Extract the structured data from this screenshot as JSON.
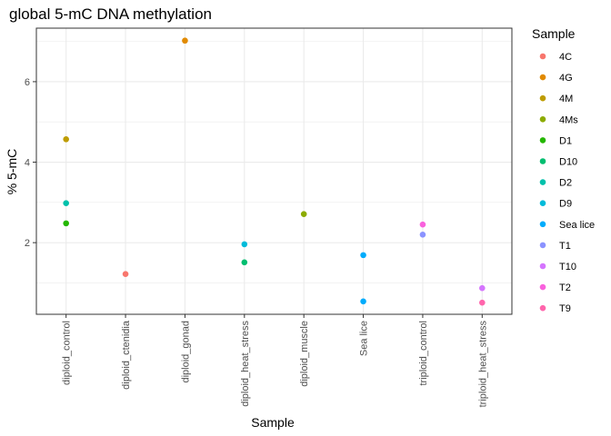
{
  "chart_data": {
    "type": "scatter",
    "title": "global 5-mC DNA methylation",
    "xlabel": "Sample",
    "ylabel": "% 5-mC",
    "categories": [
      "diploid_control",
      "diploid_ctenidia",
      "diploid_gonad",
      "diploid_heat_stress",
      "diploid_muscle",
      "Sea lice",
      "triploid_control",
      "triploid_heat_stress"
    ],
    "ylim": [
      0.22,
      7.33
    ],
    "yticks": [
      2,
      4,
      6
    ],
    "grid": true,
    "legend": {
      "title": "Sample",
      "position": "right",
      "entries": [
        {
          "label": "4C",
          "color": "#F8766D"
        },
        {
          "label": "4G",
          "color": "#E18A00"
        },
        {
          "label": "4M",
          "color": "#BE9C00"
        },
        {
          "label": "4Ms",
          "color": "#8CAB00"
        },
        {
          "label": "D1",
          "color": "#24B700"
        },
        {
          "label": "D10",
          "color": "#00BE70"
        },
        {
          "label": "D2",
          "color": "#00C1AB"
        },
        {
          "label": "D9",
          "color": "#00BBDA"
        },
        {
          "label": "Sea lice",
          "color": "#00ACFC"
        },
        {
          "label": "T1",
          "color": "#8B93FF"
        },
        {
          "label": "T10",
          "color": "#D575FE"
        },
        {
          "label": "T2",
          "color": "#F962DD"
        },
        {
          "label": "T9",
          "color": "#FF65AC"
        }
      ]
    },
    "points": [
      {
        "category": "diploid_control",
        "sample": "4M",
        "y": 4.57
      },
      {
        "category": "diploid_control",
        "sample": "D2",
        "y": 2.98
      },
      {
        "category": "diploid_control",
        "sample": "D1",
        "y": 2.48
      },
      {
        "category": "diploid_ctenidia",
        "sample": "4C",
        "y": 1.22
      },
      {
        "category": "diploid_gonad",
        "sample": "4G",
        "y": 7.02
      },
      {
        "category": "diploid_heat_stress",
        "sample": "D9",
        "y": 1.96
      },
      {
        "category": "diploid_heat_stress",
        "sample": "D10",
        "y": 1.51
      },
      {
        "category": "diploid_muscle",
        "sample": "4Ms",
        "y": 2.71
      },
      {
        "category": "Sea lice",
        "sample": "Sea lice",
        "y": 1.69
      },
      {
        "category": "Sea lice",
        "sample": "Sea lice",
        "y": 0.54
      },
      {
        "category": "triploid_control",
        "sample": "T2",
        "y": 2.45
      },
      {
        "category": "triploid_control",
        "sample": "T1",
        "y": 2.2
      },
      {
        "category": "triploid_heat_stress",
        "sample": "T10",
        "y": 0.87
      },
      {
        "category": "triploid_heat_stress",
        "sample": "T9",
        "y": 0.51
      }
    ]
  }
}
